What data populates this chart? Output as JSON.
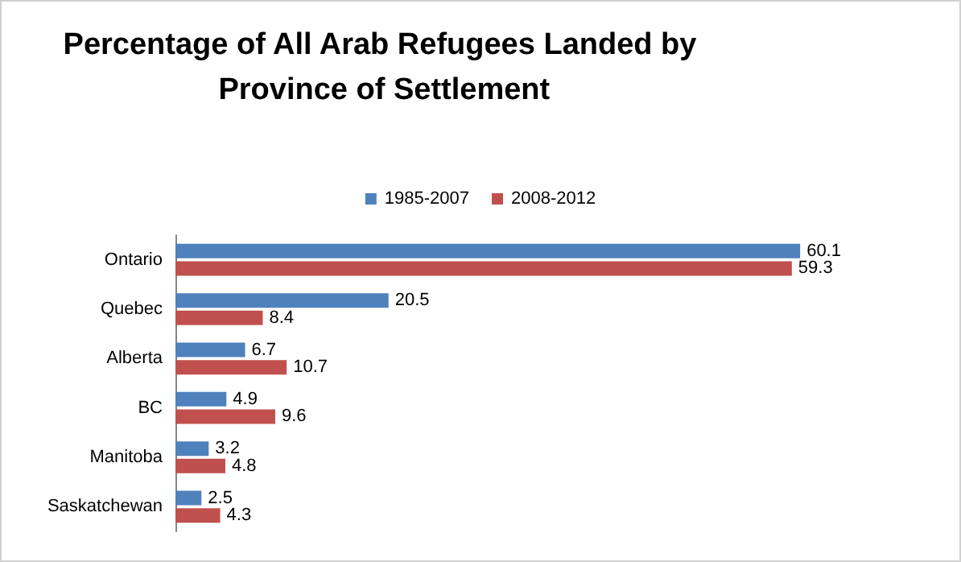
{
  "chart_data": {
    "type": "bar",
    "orientation": "horizontal",
    "title": "Percentage of All Arab Refugees Landed by Province of Settlement",
    "categories": [
      "Ontario",
      "Quebec",
      "Alberta",
      "BC",
      "Manitoba",
      "Saskatchewan"
    ],
    "series": [
      {
        "name": "1985-2007",
        "color": "#4f81bd",
        "values": [
          60.1,
          20.5,
          6.7,
          4.9,
          3.2,
          2.5
        ]
      },
      {
        "name": "2008-2012",
        "color": "#c0504d",
        "values": [
          59.3,
          8.4,
          10.7,
          9.6,
          4.8,
          4.3
        ]
      }
    ],
    "data_labels": true,
    "legend": "top",
    "grid": false
  }
}
